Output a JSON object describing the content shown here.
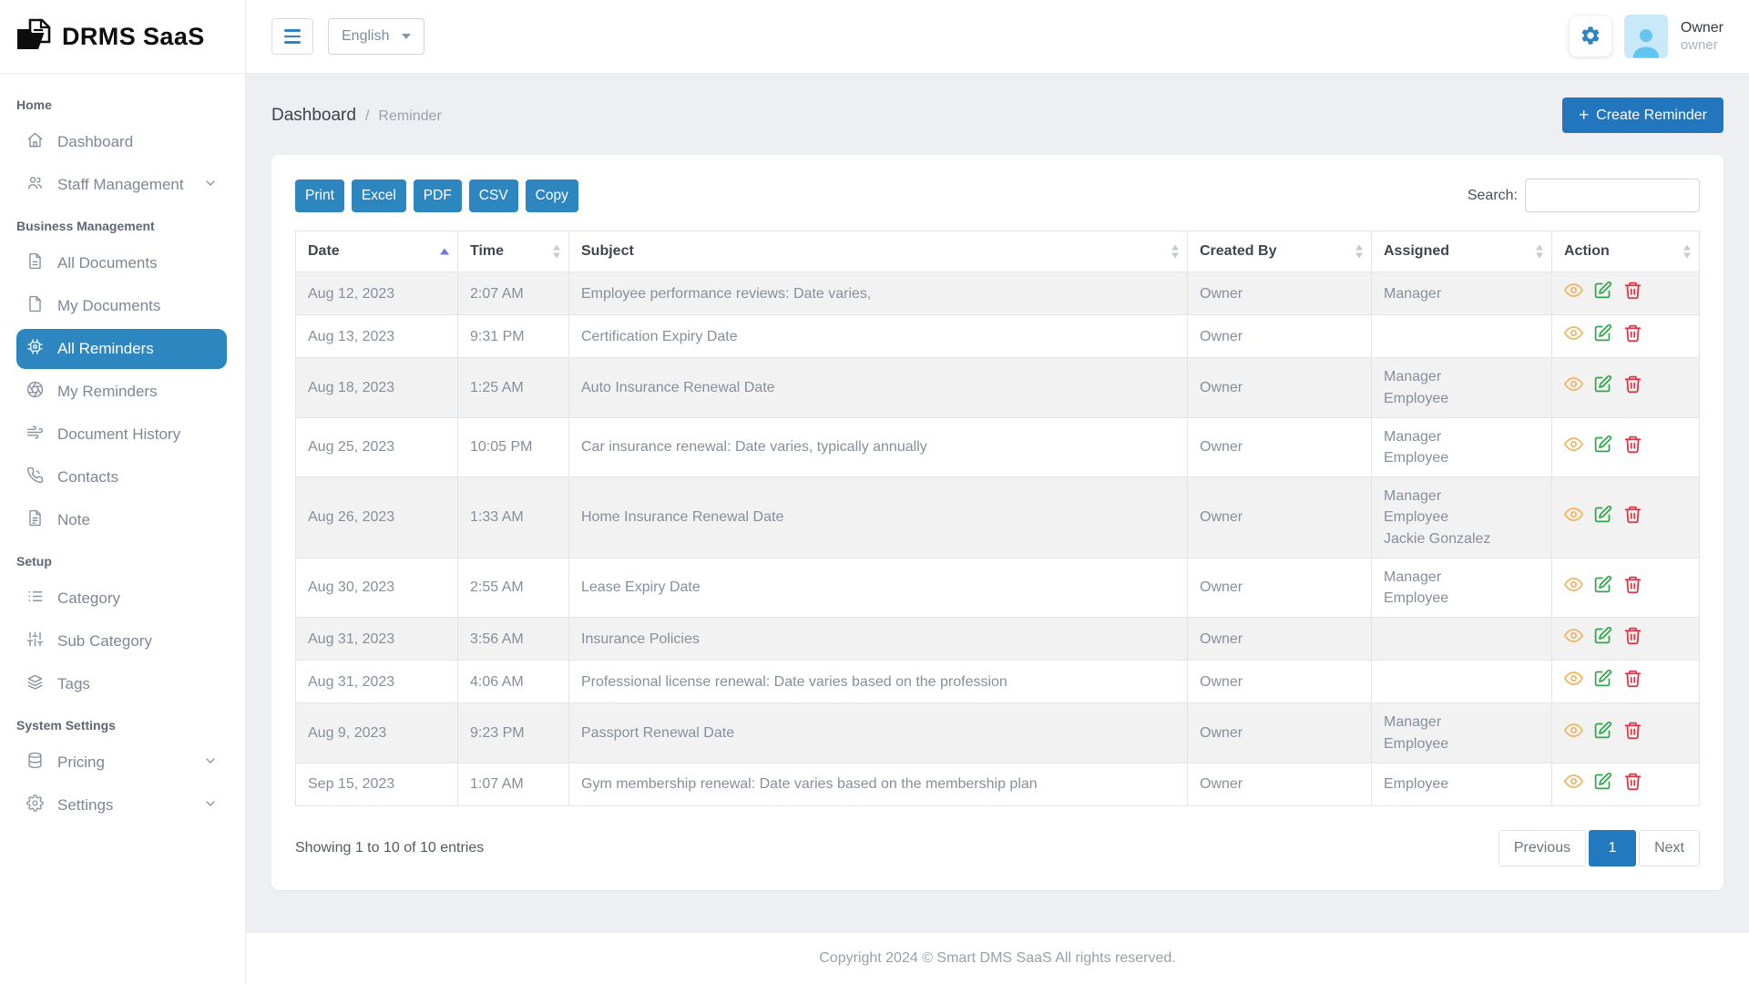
{
  "app": {
    "title": "DRMS SaaS"
  },
  "topbar": {
    "language": "English",
    "user": {
      "name": "Owner",
      "role": "owner"
    }
  },
  "sidebar": {
    "sections": [
      {
        "label": "Home",
        "items": [
          {
            "label": "Dashboard",
            "icon": "home-icon"
          },
          {
            "label": "Staff Management",
            "icon": "users-icon",
            "chevron": true
          }
        ]
      },
      {
        "label": "Business Management",
        "items": [
          {
            "label": "All Documents",
            "icon": "document-icon"
          },
          {
            "label": "My Documents",
            "icon": "file-icon"
          },
          {
            "label": "All Reminders",
            "icon": "reminder-chip-icon",
            "active": true
          },
          {
            "label": "My Reminders",
            "icon": "aperture-icon"
          },
          {
            "label": "Document History",
            "icon": "history-icon"
          },
          {
            "label": "Contacts",
            "icon": "phone-icon"
          },
          {
            "label": "Note",
            "icon": "note-icon"
          }
        ]
      },
      {
        "label": "Setup",
        "items": [
          {
            "label": "Category",
            "icon": "list-icon"
          },
          {
            "label": "Sub Category",
            "icon": "sliders-icon"
          },
          {
            "label": "Tags",
            "icon": "layers-icon"
          }
        ]
      },
      {
        "label": "System Settings",
        "items": [
          {
            "label": "Pricing",
            "icon": "database-icon",
            "chevron": true
          },
          {
            "label": "Settings",
            "icon": "gear-icon",
            "chevron": true
          }
        ]
      }
    ]
  },
  "breadcrumb": {
    "primary": "Dashboard",
    "separator": "/",
    "current": "Reminder"
  },
  "create_label": "Create Reminder",
  "create_plus": "+",
  "table": {
    "export_buttons": [
      "Print",
      "Excel",
      "PDF",
      "CSV",
      "Copy"
    ],
    "search_label": "Search:",
    "columns": [
      "Date",
      "Time",
      "Subject",
      "Created By",
      "Assigned",
      "Action"
    ],
    "sort": {
      "column": "Date",
      "direction": "asc"
    },
    "rows": [
      {
        "date": "Aug 12, 2023",
        "time": "2:07 AM",
        "subject": "Employee performance reviews: Date varies,",
        "created_by": "Owner",
        "assigned": [
          "Manager"
        ]
      },
      {
        "date": "Aug 13, 2023",
        "time": "9:31 PM",
        "subject": "Certification Expiry Date",
        "created_by": "Owner",
        "assigned": []
      },
      {
        "date": "Aug 18, 2023",
        "time": "1:25 AM",
        "subject": "Auto Insurance Renewal Date",
        "created_by": "Owner",
        "assigned": [
          "Manager",
          "Employee"
        ]
      },
      {
        "date": "Aug 25, 2023",
        "time": "10:05 PM",
        "subject": "Car insurance renewal: Date varies, typically annually",
        "created_by": "Owner",
        "assigned": [
          "Manager",
          "Employee"
        ]
      },
      {
        "date": "Aug 26, 2023",
        "time": "1:33 AM",
        "subject": "Home Insurance Renewal Date",
        "created_by": "Owner",
        "assigned": [
          "Manager",
          "Employee",
          "Jackie Gonzalez"
        ]
      },
      {
        "date": "Aug 30, 2023",
        "time": "2:55 AM",
        "subject": "Lease Expiry Date",
        "created_by": "Owner",
        "assigned": [
          "Manager",
          "Employee"
        ]
      },
      {
        "date": "Aug 31, 2023",
        "time": "3:56 AM",
        "subject": "Insurance Policies",
        "created_by": "Owner",
        "assigned": []
      },
      {
        "date": "Aug 31, 2023",
        "time": "4:06 AM",
        "subject": "Professional license renewal: Date varies based on the profession",
        "created_by": "Owner",
        "assigned": []
      },
      {
        "date": "Aug 9, 2023",
        "time": "9:23 PM",
        "subject": "Passport Renewal Date",
        "created_by": "Owner",
        "assigned": [
          "Manager",
          "Employee"
        ]
      },
      {
        "date": "Sep 15, 2023",
        "time": "1:07 AM",
        "subject": "Gym membership renewal: Date varies based on the membership plan",
        "created_by": "Owner",
        "assigned": [
          "Employee"
        ]
      }
    ],
    "summary": "Showing 1 to 10 of 10 entries",
    "pagination": {
      "previous": "Previous",
      "page": "1",
      "next": "Next"
    }
  },
  "footer": {
    "copyright": "Copyright 2024 © Smart DMS SaaS All rights reserved."
  },
  "colors": {
    "primary": "#2e86c1",
    "create_button": "#2176bd",
    "active_page": "#2379bd",
    "active_sort_arrow": "#7577e0",
    "action_view": "#f3b45c",
    "action_edit": "#33a64c",
    "action_delete": "#dc3545",
    "avatar_bg": "#c9e9fa",
    "avatar_fg": "#63c6f1",
    "content_bg": "#edeff3"
  }
}
